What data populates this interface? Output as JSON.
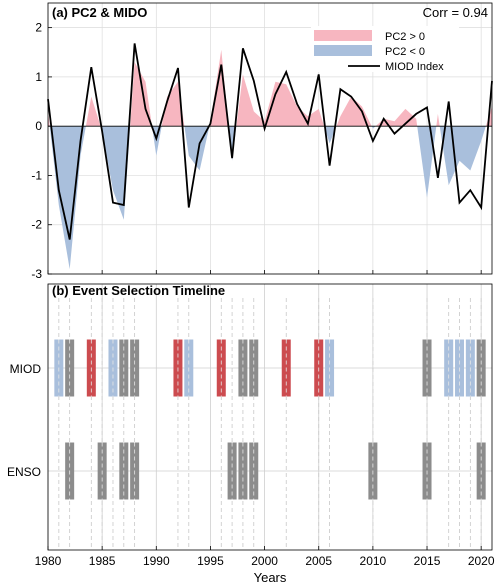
{
  "colors": {
    "positive": "#f7b6c0",
    "negative": "#a9bfdc",
    "miod_line": "#000000",
    "event_red": "#cc4b4f",
    "event_blue": "#a9bfdc",
    "event_gray": "#8c8c8c"
  },
  "chart_data": [
    {
      "panel": "a",
      "type": "area",
      "title": "(a) PC2 & MIDO",
      "annotation": "Corr = 0.94",
      "ylim": [
        -3,
        2.5
      ],
      "xlim": [
        1980,
        2021
      ],
      "yticks": [
        "-3",
        "-2",
        "-1",
        "0",
        "1",
        "2"
      ],
      "legend": {
        "placement": "top-right",
        "entries": [
          "PC2 > 0",
          "PC2 < 0",
          "MIOD Index"
        ]
      },
      "x": [
        1980,
        1981,
        1982,
        1983,
        1984,
        1985,
        1986,
        1987,
        1988,
        1989,
        1990,
        1991,
        1992,
        1993,
        1994,
        1995,
        1996,
        1997,
        1998,
        1999,
        2000,
        2001,
        2002,
        2003,
        2004,
        2005,
        2006,
        2007,
        2008,
        2009,
        2010,
        2011,
        2012,
        2013,
        2014,
        2015,
        2016,
        2017,
        2018,
        2019,
        2020,
        2021
      ],
      "series": [
        {
          "name": "PC2",
          "values": [
            0.3,
            -1.6,
            -2.9,
            -0.6,
            0.6,
            -0.1,
            -1.3,
            -1.9,
            1.3,
            0.9,
            -0.6,
            0.6,
            0.9,
            -0.6,
            -0.9,
            0.1,
            1.55,
            -0.7,
            1.05,
            0.3,
            0.1,
            0.9,
            0.85,
            0.4,
            0.2,
            0.35,
            -0.35,
            0.2,
            0.6,
            0.4,
            -0.05,
            0.15,
            0.1,
            0.35,
            0.15,
            -1.45,
            0.25,
            -1.2,
            -0.7,
            -0.9,
            -0.3,
            0.4
          ]
        },
        {
          "name": "MIOD Index",
          "values": [
            0.55,
            -1.3,
            -2.3,
            -0.3,
            1.2,
            -0.1,
            -1.55,
            -1.6,
            1.68,
            0.35,
            -0.25,
            0.5,
            1.18,
            -1.65,
            -0.35,
            0.05,
            1.25,
            -0.65,
            1.58,
            0.92,
            -0.05,
            0.65,
            1.1,
            0.45,
            0.05,
            1.05,
            -0.8,
            0.75,
            0.6,
            0.3,
            -0.3,
            0.15,
            -0.15,
            0.05,
            0.25,
            0.38,
            -1.05,
            0.5,
            -1.55,
            -1.3,
            -1.65,
            0.92
          ]
        }
      ]
    },
    {
      "panel": "b",
      "type": "timeline",
      "title": "(b) Event Selection Timeline",
      "categories": [
        "MIOD",
        "ENSO"
      ],
      "xlabel": "Years",
      "xlim": [
        1980,
        2021
      ],
      "xticks": [
        "1980",
        "1985",
        "1990",
        "1995",
        "2000",
        "2005",
        "2010",
        "2015",
        "2020"
      ],
      "dashed_years": [
        1981,
        1982,
        1984,
        1985,
        1986,
        1987,
        1988,
        1992,
        1993,
        1996,
        1997,
        1998,
        1999,
        2002,
        2005,
        2006,
        2010,
        2015,
        2017,
        2018,
        2019,
        2020
      ],
      "events": {
        "MIOD": [
          {
            "year": 1981,
            "kind": "blue"
          },
          {
            "year": 1982,
            "kind": "gray"
          },
          {
            "year": 1984,
            "kind": "red"
          },
          {
            "year": 1986,
            "kind": "blue"
          },
          {
            "year": 1987,
            "kind": "gray"
          },
          {
            "year": 1988,
            "kind": "gray"
          },
          {
            "year": 1992,
            "kind": "red"
          },
          {
            "year": 1993,
            "kind": "blue"
          },
          {
            "year": 1996,
            "kind": "red"
          },
          {
            "year": 1998,
            "kind": "gray"
          },
          {
            "year": 1999,
            "kind": "gray"
          },
          {
            "year": 2002,
            "kind": "red"
          },
          {
            "year": 2005,
            "kind": "red"
          },
          {
            "year": 2006,
            "kind": "blue"
          },
          {
            "year": 2015,
            "kind": "gray"
          },
          {
            "year": 2017,
            "kind": "blue"
          },
          {
            "year": 2018,
            "kind": "blue"
          },
          {
            "year": 2019,
            "kind": "blue"
          },
          {
            "year": 2020,
            "kind": "gray"
          }
        ],
        "ENSO": [
          {
            "year": 1982,
            "kind": "gray"
          },
          {
            "year": 1985,
            "kind": "gray"
          },
          {
            "year": 1987,
            "kind": "gray"
          },
          {
            "year": 1988,
            "kind": "gray"
          },
          {
            "year": 1997,
            "kind": "gray"
          },
          {
            "year": 1998,
            "kind": "gray"
          },
          {
            "year": 1999,
            "kind": "gray"
          },
          {
            "year": 2010,
            "kind": "gray"
          },
          {
            "year": 2015,
            "kind": "gray"
          },
          {
            "year": 2020,
            "kind": "gray"
          }
        ]
      }
    }
  ]
}
